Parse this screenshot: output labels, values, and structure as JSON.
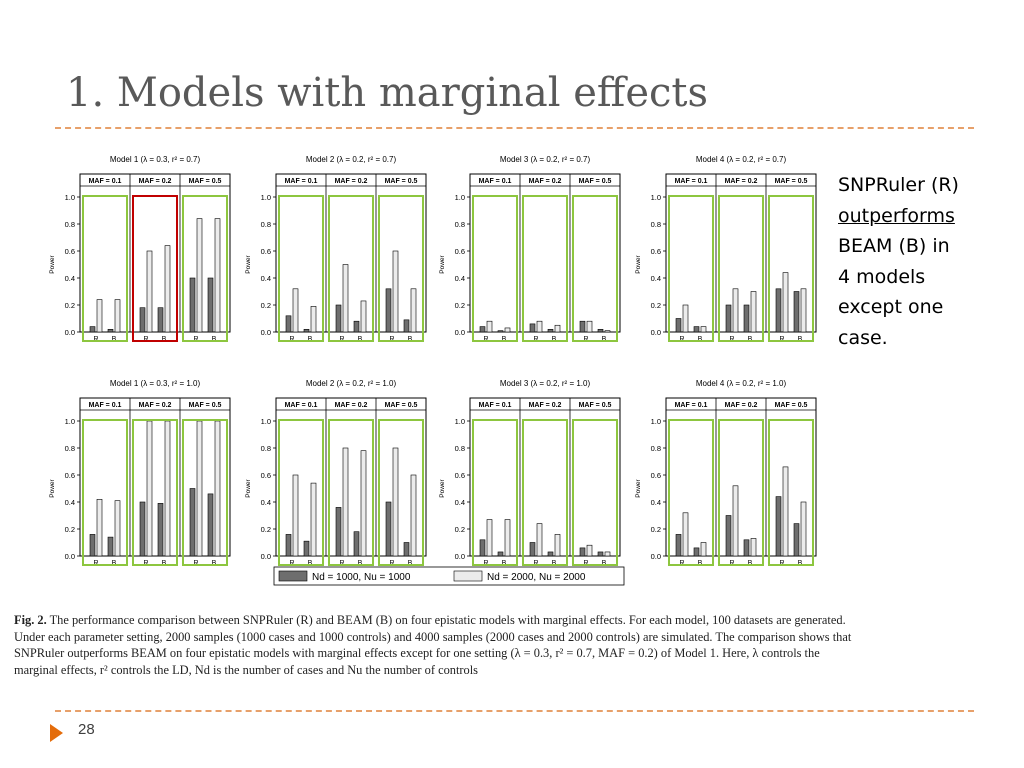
{
  "slide": {
    "title": "1. Models with marginal effects",
    "note": {
      "line1": "SNPRuler (R)",
      "line2": "outperforms",
      "line3": "BEAM (B) in",
      "line4": "4 models",
      "line5": "except one",
      "line6": "case."
    },
    "caption": {
      "label": "Fig. 2.",
      "text": "The performance comparison between SNPRuler (R) and BEAM (B) on four epistatic models with marginal effects. For each model, 100 datasets are generated. Under each parameter setting, 2000 samples (1000 cases and 1000 controls) and 4000 samples (2000 cases and 2000 controls) are simulated. The comparison shows that SNPRuler outperforms BEAM on four epistatic models with marginal effects except for one setting (λ = 0.3, r² = 0.7, MAF = 0.2) of Model 1. Here, λ controls the marginal effects, r² controls the LD, Nd is the number of cases and Nu the number of controls"
    },
    "page_number": "28",
    "colors": {
      "accent_orange": "#e46c0a",
      "dashed_rule": "#e7a06a",
      "highlight_green": "#8dc63f",
      "highlight_red": "#c00000",
      "bar_dark": "#6e6e6e",
      "bar_light": "#ececec"
    }
  },
  "chart_data": {
    "type": "bar",
    "ylabel": "Power",
    "ylim": [
      0,
      1.0
    ],
    "yticks": [
      "0.0",
      "0.2",
      "0.4",
      "0.6",
      "0.8",
      "1.0"
    ],
    "maf_labels": [
      "MAF = 0.1",
      "MAF = 0.2",
      "MAF = 0.5"
    ],
    "categories": [
      "R",
      "B"
    ],
    "legend": [
      {
        "name": "Nd = 1000, Nu = 1000",
        "color": "dark"
      },
      {
        "name": "Nd = 2000, Nu = 2000",
        "color": "light"
      }
    ],
    "panels": [
      {
        "title": "Model 1 (λ = 0.3, r² = 0.7)",
        "highlight": [
          "green",
          "red",
          "green"
        ],
        "groups": [
          [
            [
              0.04,
              0.24
            ],
            [
              0.02,
              0.24
            ]
          ],
          [
            [
              0.18,
              0.6
            ],
            [
              0.18,
              0.64
            ]
          ],
          [
            [
              0.4,
              0.84
            ],
            [
              0.4,
              0.84
            ]
          ]
        ]
      },
      {
        "title": "Model 2 (λ = 0.2, r² = 0.7)",
        "highlight": [
          "green",
          "green",
          "green"
        ],
        "groups": [
          [
            [
              0.12,
              0.32
            ],
            [
              0.02,
              0.19
            ]
          ],
          [
            [
              0.2,
              0.5
            ],
            [
              0.08,
              0.23
            ]
          ],
          [
            [
              0.32,
              0.6
            ],
            [
              0.09,
              0.32
            ]
          ]
        ]
      },
      {
        "title": "Model 3 (λ = 0.2, r² = 0.7)",
        "highlight": [
          "green",
          "green",
          "green"
        ],
        "groups": [
          [
            [
              0.04,
              0.08
            ],
            [
              0.01,
              0.03
            ]
          ],
          [
            [
              0.06,
              0.08
            ],
            [
              0.02,
              0.05
            ]
          ],
          [
            [
              0.08,
              0.08
            ],
            [
              0.02,
              0.01
            ]
          ]
        ]
      },
      {
        "title": "Model 4 (λ = 0.2, r² = 0.7)",
        "highlight": [
          "green",
          "green",
          "green"
        ],
        "groups": [
          [
            [
              0.1,
              0.2
            ],
            [
              0.04,
              0.04
            ]
          ],
          [
            [
              0.2,
              0.32
            ],
            [
              0.2,
              0.3
            ]
          ],
          [
            [
              0.32,
              0.44
            ],
            [
              0.3,
              0.32
            ]
          ]
        ]
      },
      {
        "title": "Model 1 (λ = 0.3, r² = 1.0)",
        "highlight": [
          "green",
          "green",
          "green"
        ],
        "groups": [
          [
            [
              0.16,
              0.42
            ],
            [
              0.14,
              0.41
            ]
          ],
          [
            [
              0.4,
              1.0
            ],
            [
              0.39,
              1.0
            ]
          ],
          [
            [
              0.5,
              1.0
            ],
            [
              0.46,
              1.0
            ]
          ]
        ]
      },
      {
        "title": "Model 2 (λ = 0.2, r² = 1.0)",
        "highlight": [
          "green",
          "green",
          "green"
        ],
        "groups": [
          [
            [
              0.16,
              0.6
            ],
            [
              0.11,
              0.54
            ]
          ],
          [
            [
              0.36,
              0.8
            ],
            [
              0.18,
              0.78
            ]
          ],
          [
            [
              0.4,
              0.8
            ],
            [
              0.1,
              0.6
            ]
          ]
        ]
      },
      {
        "title": "Model 3 (λ = 0.2, r² = 1.0)",
        "highlight": [
          "green",
          "green",
          "green"
        ],
        "groups": [
          [
            [
              0.12,
              0.27
            ],
            [
              0.03,
              0.27
            ]
          ],
          [
            [
              0.1,
              0.24
            ],
            [
              0.03,
              0.16
            ]
          ],
          [
            [
              0.06,
              0.08
            ],
            [
              0.03,
              0.03
            ]
          ]
        ]
      },
      {
        "title": "Model 4 (λ = 0.2, r² = 1.0)",
        "highlight": [
          "green",
          "green",
          "green"
        ],
        "groups": [
          [
            [
              0.16,
              0.32
            ],
            [
              0.06,
              0.1
            ]
          ],
          [
            [
              0.3,
              0.52
            ],
            [
              0.12,
              0.13
            ]
          ],
          [
            [
              0.44,
              0.66
            ],
            [
              0.24,
              0.4
            ]
          ]
        ]
      }
    ]
  }
}
